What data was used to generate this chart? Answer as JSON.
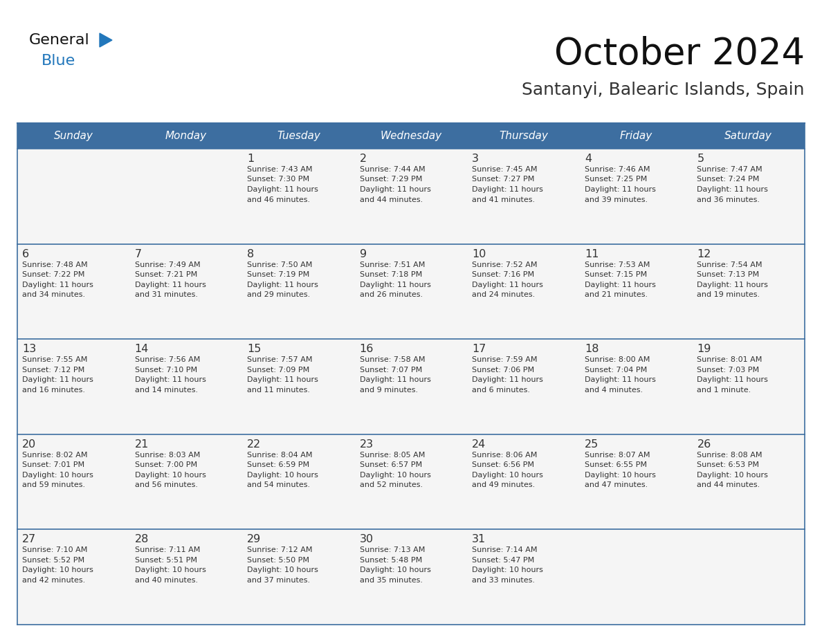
{
  "title": "October 2024",
  "subtitle": "Santanyi, Balearic Islands, Spain",
  "days_of_week": [
    "Sunday",
    "Monday",
    "Tuesday",
    "Wednesday",
    "Thursday",
    "Friday",
    "Saturday"
  ],
  "header_bg": "#3d6ea0",
  "header_text": "#ffffff",
  "row_bg": "#f5f5f5",
  "border_color": "#3d6ea0",
  "text_color": "#333333",
  "calendar_data": [
    [
      {
        "day": null,
        "info": null
      },
      {
        "day": null,
        "info": null
      },
      {
        "day": "1",
        "info": "Sunrise: 7:43 AM\nSunset: 7:30 PM\nDaylight: 11 hours\nand 46 minutes."
      },
      {
        "day": "2",
        "info": "Sunrise: 7:44 AM\nSunset: 7:29 PM\nDaylight: 11 hours\nand 44 minutes."
      },
      {
        "day": "3",
        "info": "Sunrise: 7:45 AM\nSunset: 7:27 PM\nDaylight: 11 hours\nand 41 minutes."
      },
      {
        "day": "4",
        "info": "Sunrise: 7:46 AM\nSunset: 7:25 PM\nDaylight: 11 hours\nand 39 minutes."
      },
      {
        "day": "5",
        "info": "Sunrise: 7:47 AM\nSunset: 7:24 PM\nDaylight: 11 hours\nand 36 minutes."
      }
    ],
    [
      {
        "day": "6",
        "info": "Sunrise: 7:48 AM\nSunset: 7:22 PM\nDaylight: 11 hours\nand 34 minutes."
      },
      {
        "day": "7",
        "info": "Sunrise: 7:49 AM\nSunset: 7:21 PM\nDaylight: 11 hours\nand 31 minutes."
      },
      {
        "day": "8",
        "info": "Sunrise: 7:50 AM\nSunset: 7:19 PM\nDaylight: 11 hours\nand 29 minutes."
      },
      {
        "day": "9",
        "info": "Sunrise: 7:51 AM\nSunset: 7:18 PM\nDaylight: 11 hours\nand 26 minutes."
      },
      {
        "day": "10",
        "info": "Sunrise: 7:52 AM\nSunset: 7:16 PM\nDaylight: 11 hours\nand 24 minutes."
      },
      {
        "day": "11",
        "info": "Sunrise: 7:53 AM\nSunset: 7:15 PM\nDaylight: 11 hours\nand 21 minutes."
      },
      {
        "day": "12",
        "info": "Sunrise: 7:54 AM\nSunset: 7:13 PM\nDaylight: 11 hours\nand 19 minutes."
      }
    ],
    [
      {
        "day": "13",
        "info": "Sunrise: 7:55 AM\nSunset: 7:12 PM\nDaylight: 11 hours\nand 16 minutes."
      },
      {
        "day": "14",
        "info": "Sunrise: 7:56 AM\nSunset: 7:10 PM\nDaylight: 11 hours\nand 14 minutes."
      },
      {
        "day": "15",
        "info": "Sunrise: 7:57 AM\nSunset: 7:09 PM\nDaylight: 11 hours\nand 11 minutes."
      },
      {
        "day": "16",
        "info": "Sunrise: 7:58 AM\nSunset: 7:07 PM\nDaylight: 11 hours\nand 9 minutes."
      },
      {
        "day": "17",
        "info": "Sunrise: 7:59 AM\nSunset: 7:06 PM\nDaylight: 11 hours\nand 6 minutes."
      },
      {
        "day": "18",
        "info": "Sunrise: 8:00 AM\nSunset: 7:04 PM\nDaylight: 11 hours\nand 4 minutes."
      },
      {
        "day": "19",
        "info": "Sunrise: 8:01 AM\nSunset: 7:03 PM\nDaylight: 11 hours\nand 1 minute."
      }
    ],
    [
      {
        "day": "20",
        "info": "Sunrise: 8:02 AM\nSunset: 7:01 PM\nDaylight: 10 hours\nand 59 minutes."
      },
      {
        "day": "21",
        "info": "Sunrise: 8:03 AM\nSunset: 7:00 PM\nDaylight: 10 hours\nand 56 minutes."
      },
      {
        "day": "22",
        "info": "Sunrise: 8:04 AM\nSunset: 6:59 PM\nDaylight: 10 hours\nand 54 minutes."
      },
      {
        "day": "23",
        "info": "Sunrise: 8:05 AM\nSunset: 6:57 PM\nDaylight: 10 hours\nand 52 minutes."
      },
      {
        "day": "24",
        "info": "Sunrise: 8:06 AM\nSunset: 6:56 PM\nDaylight: 10 hours\nand 49 minutes."
      },
      {
        "day": "25",
        "info": "Sunrise: 8:07 AM\nSunset: 6:55 PM\nDaylight: 10 hours\nand 47 minutes."
      },
      {
        "day": "26",
        "info": "Sunrise: 8:08 AM\nSunset: 6:53 PM\nDaylight: 10 hours\nand 44 minutes."
      }
    ],
    [
      {
        "day": "27",
        "info": "Sunrise: 7:10 AM\nSunset: 5:52 PM\nDaylight: 10 hours\nand 42 minutes."
      },
      {
        "day": "28",
        "info": "Sunrise: 7:11 AM\nSunset: 5:51 PM\nDaylight: 10 hours\nand 40 minutes."
      },
      {
        "day": "29",
        "info": "Sunrise: 7:12 AM\nSunset: 5:50 PM\nDaylight: 10 hours\nand 37 minutes."
      },
      {
        "day": "30",
        "info": "Sunrise: 7:13 AM\nSunset: 5:48 PM\nDaylight: 10 hours\nand 35 minutes."
      },
      {
        "day": "31",
        "info": "Sunrise: 7:14 AM\nSunset: 5:47 PM\nDaylight: 10 hours\nand 33 minutes."
      },
      {
        "day": null,
        "info": null
      },
      {
        "day": null,
        "info": null
      }
    ]
  ],
  "logo_text1": "General",
  "logo_text2": "Blue",
  "logo_color1": "#111111",
  "logo_color2": "#2277bb",
  "logo_triangle_color": "#2277bb",
  "fig_width": 11.88,
  "fig_height": 9.18,
  "fig_dpi": 100
}
